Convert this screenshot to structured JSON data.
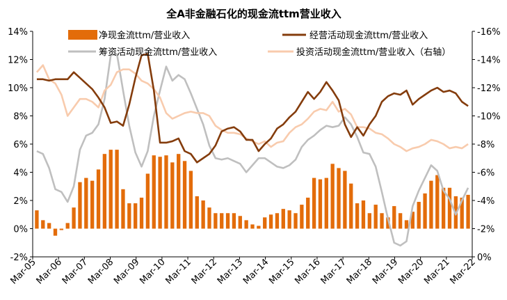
{
  "chart_data": {
    "type": "bar+line",
    "title": "全A非金融石化的现金流ttm营业收入",
    "x_tick_labels": [
      "Mar-05",
      "Mar-06",
      "Mar-07",
      "Mar-08",
      "Mar-09",
      "Mar-10",
      "Mar-11",
      "Mar-12",
      "Mar-13",
      "Mar-14",
      "Mar-15",
      "Mar-16",
      "Mar-17",
      "Mar-18",
      "Mar-19",
      "Mar-20",
      "Mar-21",
      "Mar-22"
    ],
    "y_left": {
      "ticks": [
        "-2%",
        "0%",
        "2%",
        "4%",
        "6%",
        "8%",
        "10%",
        "12%",
        "14%"
      ],
      "range": [
        -2,
        14
      ]
    },
    "y_right": {
      "ticks": [
        "0%",
        "-2%",
        "-4%",
        "-6%",
        "-8%",
        "-10%",
        "-12%",
        "-14%",
        "-16%"
      ],
      "range": [
        0,
        -16
      ],
      "inverted": true
    },
    "grid": false,
    "legend_position": "top",
    "series": [
      {
        "name": "净现金流ttm/营业收入",
        "type": "bar",
        "axis": "left",
        "color": "#E36C0A",
        "values": [
          1.3,
          0.6,
          0.4,
          -0.5,
          -0.1,
          0.4,
          1.5,
          3.3,
          3.6,
          3.4,
          4.2,
          5.3,
          5.6,
          5.6,
          2.8,
          1.8,
          1.8,
          2.2,
          3.9,
          5.2,
          5.1,
          5.2,
          4.7,
          5.3,
          4.8,
          4.1,
          2.3,
          2.0,
          1.5,
          1.1,
          1.1,
          1.1,
          1.1,
          0.9,
          0.6,
          0.3,
          0.2,
          0.8,
          1.0,
          1.1,
          1.4,
          1.3,
          1.1,
          1.7,
          2.2,
          3.6,
          3.5,
          3.6,
          4.6,
          4.3,
          4.1,
          3.2,
          1.8,
          2.0,
          1.1,
          1.7,
          1.1,
          0.8,
          1.6,
          1.1,
          0.6,
          1.2,
          1.9,
          2.5,
          3.4,
          3.8,
          2.9,
          2.9,
          2.3,
          2.2,
          2.4
        ]
      },
      {
        "name": "经营活动现金流ttm/营业收入",
        "type": "line",
        "axis": "left",
        "color": "#843C0C",
        "values": [
          10.6,
          10.6,
          10.5,
          10.6,
          10.6,
          10.6,
          11.1,
          10.7,
          10.3,
          9.9,
          9.3,
          8.6,
          7.5,
          7.6,
          7.3,
          8.8,
          10.7,
          12.3,
          12.4,
          9.8,
          6.1,
          6.1,
          6.2,
          6.4,
          5.5,
          5.3,
          4.7,
          5.0,
          5.3,
          5.9,
          6.9,
          7.1,
          7.2,
          6.9,
          6.3,
          6.3,
          5.5,
          6.0,
          6.4,
          7.1,
          7.4,
          7.9,
          8.3,
          9.0,
          9.7,
          9.2,
          9.7,
          10.4,
          9.8,
          9.1,
          7.4,
          6.5,
          7.2,
          6.6,
          7.4,
          8.0,
          9.0,
          9.4,
          9.6,
          9.5,
          9.8,
          8.8,
          9.2,
          9.5,
          9.8,
          10.0,
          9.7,
          9.8,
          9.6,
          9.0,
          8.7
        ]
      },
      {
        "name": "筹资活动现金流ttm/营业收入",
        "type": "line",
        "axis": "left",
        "color": "#BFBFBF",
        "values": [
          5.5,
          5.3,
          4.3,
          2.8,
          2.6,
          1.9,
          3.0,
          5.6,
          6.6,
          6.8,
          7.4,
          9.2,
          12.3,
          12.4,
          9.8,
          7.3,
          5.4,
          4.4,
          5.5,
          8.0,
          9.8,
          11.5,
          10.5,
          10.9,
          10.6,
          9.6,
          8.5,
          7.4,
          5.9,
          5.0,
          4.9,
          5.0,
          4.8,
          4.6,
          4.0,
          4.5,
          5.0,
          5.0,
          4.7,
          4.4,
          4.3,
          4.5,
          4.9,
          5.8,
          6.3,
          6.6,
          7.0,
          7.3,
          7.2,
          7.3,
          7.9,
          7.4,
          6.5,
          5.4,
          5.3,
          4.4,
          2.6,
          0.7,
          -1.0,
          -1.2,
          -0.9,
          1.6,
          2.7,
          3.6,
          4.5,
          4.1,
          2.7,
          2.1,
          1.0,
          2.0,
          2.9
        ]
      },
      {
        "name": "投资活动现金流ttm/营业收入（右轴）",
        "type": "line",
        "axis": "right",
        "color": "#F8CBAD",
        "values": [
          -13.1,
          -13.6,
          -12.6,
          -12.3,
          -11.5,
          -10.0,
          -10.6,
          -11.2,
          -11.2,
          -11.0,
          -10.6,
          -11.8,
          -12.2,
          -13.1,
          -13.3,
          -13.3,
          -13.0,
          -12.5,
          -12.3,
          -11.9,
          -11.3,
          -10.2,
          -9.8,
          -10.0,
          -10.2,
          -10.3,
          -10.2,
          -10.2,
          -10.0,
          -9.3,
          -9.0,
          -8.8,
          -8.8,
          -8.7,
          -8.4,
          -8.2,
          -8.0,
          -8.2,
          -7.8,
          -8.1,
          -8.2,
          -8.8,
          -9.2,
          -9.4,
          -9.8,
          -10.3,
          -10.5,
          -10.4,
          -11.0,
          -10.3,
          -10.5,
          -10.1,
          -9.2,
          -9.2,
          -9.1,
          -8.8,
          -8.7,
          -8.4,
          -8.0,
          -7.8,
          -7.5,
          -7.7,
          -7.8,
          -8.0,
          -8.3,
          -8.2,
          -8.0,
          -7.7,
          -7.8,
          -7.7,
          -8.0
        ]
      }
    ]
  }
}
